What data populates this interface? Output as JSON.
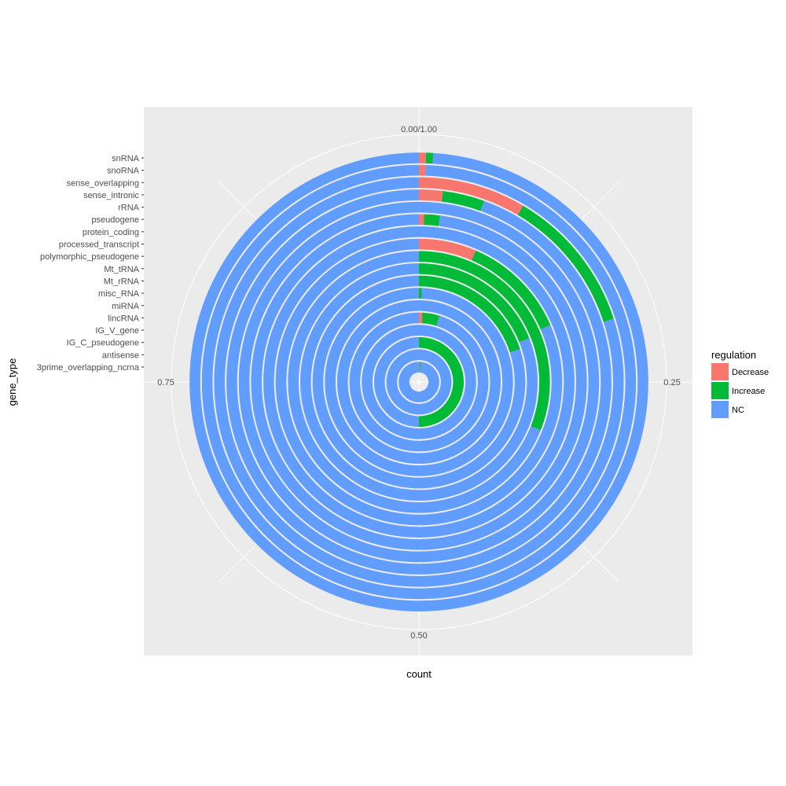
{
  "chart_data": {
    "type": "polar-stacked-bar",
    "coord": "polar (theta = count, proportion)",
    "xlabel": "count",
    "ylabel": "gene_type",
    "theta_ticks": [
      "0.00/1.00",
      "0.25",
      "0.50",
      "0.75"
    ],
    "categories": [
      "3prime_overlapping_ncrna",
      "antisense",
      "IG_C_pseudogene",
      "IG_V_gene",
      "lincRNA",
      "miRNA",
      "misc_RNA",
      "Mt_rRNA",
      "Mt_tRNA",
      "polymorphic_pseudogene",
      "processed_transcript",
      "protein_coding",
      "pseudogene",
      "rRNA",
      "sense_intronic",
      "sense_overlapping",
      "snoRNA",
      "snRNA"
    ],
    "series": [
      {
        "name": "Decrease",
        "color": "#F8766D",
        "values": [
          0.005,
          0,
          0,
          0,
          0.008,
          0,
          0,
          0,
          0,
          0,
          0.065,
          0,
          0.005,
          0,
          0.02,
          0.085,
          0.005,
          0.005
        ]
      },
      {
        "name": "Increase",
        "color": "#00BA38",
        "values": [
          0.01,
          0,
          0.5,
          0,
          0.04,
          0,
          0.005,
          0.2,
          0.19,
          0.31,
          0.12,
          0,
          0.015,
          0,
          0.035,
          0.115,
          0,
          0.005
        ]
      },
      {
        "name": "NC",
        "color": "#619CFF",
        "values": [
          0.985,
          1.0,
          0.5,
          1.0,
          0.952,
          1.0,
          0.995,
          0.8,
          0.81,
          0.69,
          0.815,
          1.0,
          0.98,
          1.0,
          0.945,
          0.8,
          0.995,
          0.99
        ]
      }
    ],
    "legend": {
      "title": "regulation",
      "position": "right"
    },
    "grid": true,
    "colors": {
      "panel_bg": "#EBEBEB",
      "grid": "#FFFFFF",
      "tick_text": "#4D4D4D"
    }
  }
}
